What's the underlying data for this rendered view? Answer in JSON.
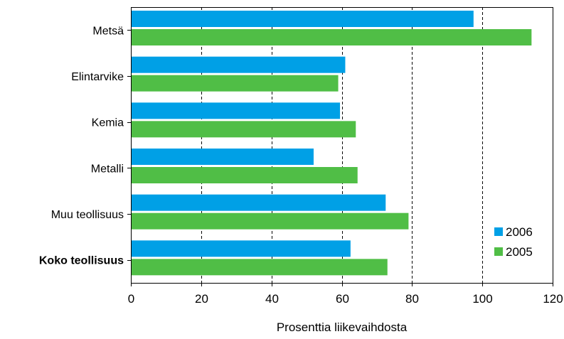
{
  "chart_data": {
    "type": "bar",
    "orientation": "horizontal",
    "categories": [
      "Metsä",
      "Elintarvike",
      "Kemia",
      "Metalli",
      "Muu teollisuus",
      "Koko teollisuus"
    ],
    "bold_categories": [
      "Koko teollisuus"
    ],
    "series": [
      {
        "name": "2006",
        "color": "#00a0e6",
        "values": [
          97.5,
          61,
          59.5,
          52,
          72.5,
          62.5
        ]
      },
      {
        "name": "2005",
        "color": "#50be46",
        "values": [
          114,
          59,
          64,
          64.5,
          79,
          73
        ]
      }
    ],
    "xlabel": "Prosenttia liikevaihdosta",
    "ylabel": "",
    "title": "",
    "xlim": [
      0,
      120
    ],
    "xticks": [
      0,
      20,
      40,
      60,
      80,
      100,
      120
    ],
    "grid": "vertical-dashed",
    "legend_position": "bottom-right"
  }
}
